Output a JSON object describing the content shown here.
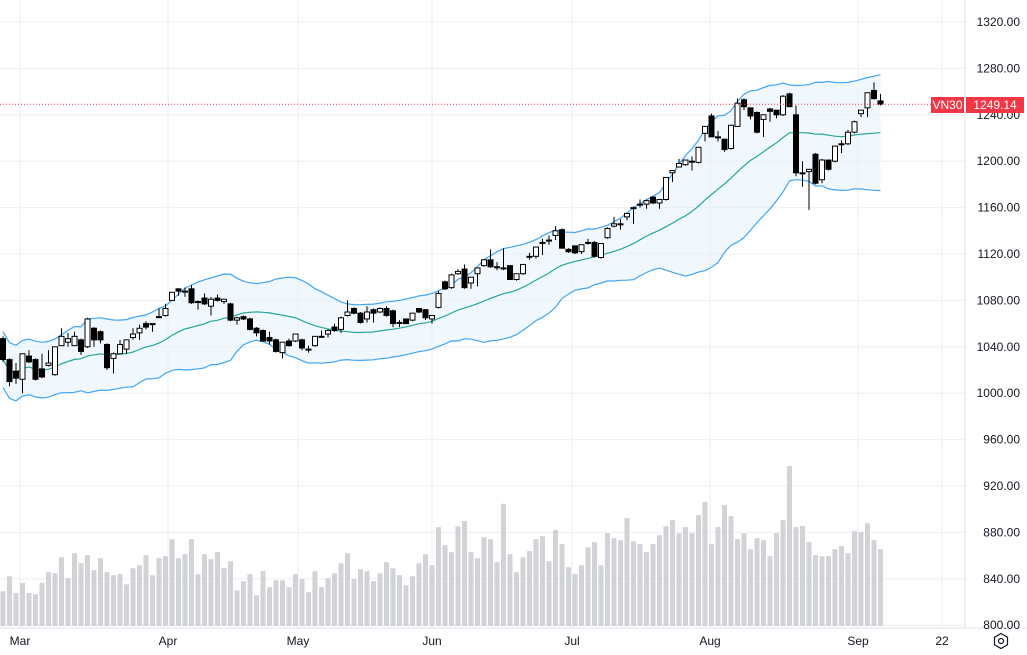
{
  "chart_data": {
    "type": "candlestick",
    "symbol": "VN30",
    "last_price": "1249.14",
    "y_ticks": [
      "1320.00",
      "1280.00",
      "1240.00",
      "1200.00",
      "1160.00",
      "1120.00",
      "1080.00",
      "1040.00",
      "1000.00",
      "960.00",
      "920.00",
      "880.00",
      "840.00",
      "800.00"
    ],
    "ylim": [
      800,
      1320
    ],
    "x_ticks": [
      "Mar",
      "Apr",
      "May",
      "Jun",
      "Jul",
      "Aug",
      "Sep",
      "22"
    ],
    "grid": true,
    "overlays": [
      "bollinger-upper",
      "bollinger-basis",
      "bollinger-lower",
      "volume"
    ],
    "colors": {
      "up_body": "#ffffff",
      "down_body": "#000000",
      "band": "#42a5f5",
      "basis": "#26a69a",
      "band_fill": "#e3f2fd",
      "volume": "#c9cbd0",
      "last_price": "#f23645"
    },
    "ohlc": [
      [
        1047,
        1049,
        1027,
        1029
      ],
      [
        1029,
        1030,
        1006,
        1010
      ],
      [
        1019,
        1026,
        1008,
        1013
      ],
      [
        1012,
        1034,
        1000,
        1034
      ],
      [
        1032,
        1037,
        1026,
        1027
      ],
      [
        1029,
        1030,
        1011,
        1012
      ],
      [
        1021,
        1034,
        1013,
        1014
      ],
      [
        1024,
        1037,
        1023,
        1026
      ],
      [
        1016,
        1040,
        1015,
        1040
      ],
      [
        1041,
        1056,
        1041,
        1049
      ],
      [
        1044,
        1052,
        1040,
        1047
      ],
      [
        1041,
        1053,
        1041,
        1049
      ],
      [
        1046,
        1047,
        1033,
        1036
      ],
      [
        1040,
        1065,
        1039,
        1064
      ],
      [
        1056,
        1057,
        1040,
        1046
      ],
      [
        1053,
        1054,
        1043,
        1046
      ],
      [
        1042,
        1043,
        1020,
        1022
      ],
      [
        1030,
        1035,
        1017,
        1034
      ],
      [
        1034,
        1046,
        1034,
        1042
      ],
      [
        1038,
        1046,
        1034,
        1046
      ],
      [
        1048,
        1056,
        1046,
        1051
      ],
      [
        1052,
        1059,
        1046,
        1056
      ],
      [
        1060,
        1062,
        1055,
        1057
      ],
      [
        1060,
        1060,
        1053,
        1060
      ],
      [
        1066,
        1073,
        1065,
        1066
      ],
      [
        1067,
        1077,
        1066,
        1073
      ],
      [
        1080,
        1087,
        1080,
        1087
      ],
      [
        1090,
        1090,
        1084,
        1088
      ],
      [
        1088,
        1091,
        1083,
        1088
      ],
      [
        1090,
        1093,
        1077,
        1078
      ],
      [
        1079,
        1080,
        1072,
        1079
      ],
      [
        1082,
        1086,
        1076,
        1077
      ],
      [
        1075,
        1083,
        1067,
        1081
      ],
      [
        1082,
        1085,
        1079,
        1080
      ],
      [
        1079,
        1081,
        1077,
        1081
      ],
      [
        1077,
        1078,
        1062,
        1063
      ],
      [
        1063,
        1066,
        1059,
        1065
      ],
      [
        1066,
        1067,
        1063,
        1064
      ],
      [
        1064,
        1065,
        1054,
        1055
      ],
      [
        1056,
        1057,
        1049,
        1052
      ],
      [
        1054,
        1055,
        1045,
        1045
      ],
      [
        1048,
        1053,
        1042,
        1045
      ],
      [
        1046,
        1047,
        1035,
        1036
      ],
      [
        1035,
        1044,
        1030,
        1044
      ],
      [
        1045,
        1047,
        1040,
        1041
      ],
      [
        1045,
        1051,
        1044,
        1051
      ],
      [
        1046,
        1047,
        1037,
        1039
      ],
      [
        1038,
        1041,
        1035,
        1038
      ],
      [
        1041,
        1049,
        1040,
        1049
      ],
      [
        1049,
        1054,
        1049,
        1049
      ],
      [
        1051,
        1055,
        1048,
        1054
      ],
      [
        1057,
        1060,
        1053,
        1054
      ],
      [
        1055,
        1066,
        1052,
        1065
      ],
      [
        1067,
        1080,
        1066,
        1070
      ],
      [
        1073,
        1074,
        1068,
        1069
      ],
      [
        1069,
        1070,
        1060,
        1061
      ],
      [
        1064,
        1075,
        1061,
        1070
      ],
      [
        1072,
        1073,
        1061,
        1069
      ],
      [
        1070,
        1074,
        1069,
        1073
      ],
      [
        1073,
        1075,
        1066,
        1067
      ],
      [
        1071,
        1072,
        1057,
        1060
      ],
      [
        1061,
        1063,
        1057,
        1061
      ],
      [
        1064,
        1064,
        1060,
        1060
      ],
      [
        1063,
        1069,
        1062,
        1069
      ],
      [
        1073,
        1073,
        1069,
        1070
      ],
      [
        1072,
        1072,
        1063,
        1065
      ],
      [
        1064,
        1067,
        1060,
        1067
      ],
      [
        1074,
        1088,
        1073,
        1086
      ],
      [
        1096,
        1097,
        1089,
        1090
      ],
      [
        1091,
        1103,
        1090,
        1102
      ],
      [
        1103,
        1107,
        1102,
        1105
      ],
      [
        1107,
        1111,
        1090,
        1091
      ],
      [
        1095,
        1100,
        1090,
        1100
      ],
      [
        1103,
        1108,
        1092,
        1108
      ],
      [
        1110,
        1115,
        1109,
        1115
      ],
      [
        1115,
        1124,
        1108,
        1109
      ],
      [
        1109,
        1113,
        1106,
        1109
      ],
      [
        1108,
        1125,
        1106,
        1108
      ],
      [
        1110,
        1110,
        1098,
        1098
      ],
      [
        1098,
        1103,
        1097,
        1103
      ],
      [
        1103,
        1111,
        1102,
        1111
      ],
      [
        1118,
        1121,
        1115,
        1118
      ],
      [
        1118,
        1126,
        1116,
        1126
      ],
      [
        1130,
        1133,
        1119,
        1130
      ],
      [
        1132,
        1136,
        1128,
        1132
      ],
      [
        1136,
        1144,
        1132,
        1140
      ],
      [
        1141,
        1142,
        1125,
        1125
      ],
      [
        1124,
        1125,
        1121,
        1122
      ],
      [
        1127,
        1127,
        1120,
        1121
      ],
      [
        1122,
        1128,
        1120,
        1128
      ],
      [
        1130,
        1133,
        1128,
        1130
      ],
      [
        1130,
        1131,
        1117,
        1118
      ],
      [
        1117,
        1129,
        1116,
        1129
      ],
      [
        1134,
        1143,
        1133,
        1142
      ],
      [
        1144,
        1152,
        1143,
        1146
      ],
      [
        1146,
        1150,
        1141,
        1146
      ],
      [
        1152,
        1155,
        1149,
        1155
      ],
      [
        1160,
        1161,
        1146,
        1160
      ],
      [
        1163,
        1167,
        1160,
        1163
      ],
      [
        1163,
        1167,
        1159,
        1166
      ],
      [
        1169,
        1170,
        1163,
        1164
      ],
      [
        1164,
        1167,
        1159,
        1167
      ],
      [
        1167,
        1186,
        1166,
        1186
      ],
      [
        1190,
        1192,
        1182,
        1192
      ],
      [
        1195,
        1202,
        1195,
        1198
      ],
      [
        1197,
        1201,
        1196,
        1201
      ],
      [
        1200,
        1204,
        1192,
        1200
      ],
      [
        1199,
        1212,
        1198,
        1212
      ],
      [
        1224,
        1230,
        1217,
        1230
      ],
      [
        1239,
        1241,
        1221,
        1221
      ],
      [
        1221,
        1226,
        1217,
        1221
      ],
      [
        1219,
        1219,
        1208,
        1210
      ],
      [
        1211,
        1231,
        1210,
        1231
      ],
      [
        1230,
        1254,
        1230,
        1250
      ],
      [
        1253,
        1254,
        1244,
        1247
      ],
      [
        1246,
        1246,
        1236,
        1239
      ],
      [
        1242,
        1243,
        1224,
        1225
      ],
      [
        1236,
        1240,
        1221,
        1240
      ],
      [
        1245,
        1246,
        1234,
        1243
      ],
      [
        1244,
        1244,
        1237,
        1240
      ],
      [
        1240,
        1257,
        1239,
        1256
      ],
      [
        1258,
        1259,
        1247,
        1247
      ],
      [
        1240,
        1248,
        1187,
        1190
      ],
      [
        1190,
        1200,
        1178,
        1190
      ],
      [
        1191,
        1193,
        1158,
        1193
      ],
      [
        1206,
        1207,
        1180,
        1181
      ],
      [
        1184,
        1202,
        1181,
        1201
      ],
      [
        1201,
        1201,
        1192,
        1193
      ],
      [
        1200,
        1213,
        1199,
        1213
      ],
      [
        1215,
        1218,
        1207,
        1215
      ],
      [
        1215,
        1227,
        1214,
        1225
      ],
      [
        1225,
        1235,
        1224,
        1234
      ],
      [
        1241,
        1244,
        1238,
        1244
      ],
      [
        1246,
        1259,
        1238,
        1259
      ],
      [
        1261,
        1268,
        1253,
        1254
      ],
      [
        1252,
        1258,
        1248,
        1249.14
      ]
    ],
    "volume": [
      104,
      149,
      99,
      129,
      99,
      95,
      129,
      161,
      158,
      206,
      143,
      218,
      188,
      212,
      167,
      203,
      161,
      152,
      155,
      125,
      173,
      182,
      212,
      152,
      203,
      209,
      260,
      203,
      215,
      260,
      155,
      215,
      200,
      221,
      173,
      194,
      107,
      134,
      155,
      92,
      164,
      116,
      137,
      137,
      116,
      155,
      140,
      101,
      164,
      116,
      143,
      158,
      188,
      218,
      140,
      170,
      164,
      134,
      158,
      191,
      173,
      152,
      122,
      149,
      188,
      215,
      182,
      296,
      242,
      221,
      299,
      314,
      221,
      203,
      266,
      260,
      191,
      366,
      215,
      161,
      206,
      224,
      260,
      269,
      194,
      287,
      245,
      176,
      155,
      182,
      236,
      251,
      182,
      278,
      263,
      257,
      323,
      254,
      245,
      221,
      245,
      272,
      299,
      317,
      278,
      296,
      278,
      332,
      371,
      245,
      296,
      362,
      329,
      260,
      278,
      230,
      263,
      257,
      209,
      278,
      317,
      479,
      296,
      299,
      251,
      212,
      209,
      209,
      230,
      239,
      218,
      284,
      281,
      308,
      257,
      230
    ]
  },
  "settings_icon": "gear-icon"
}
